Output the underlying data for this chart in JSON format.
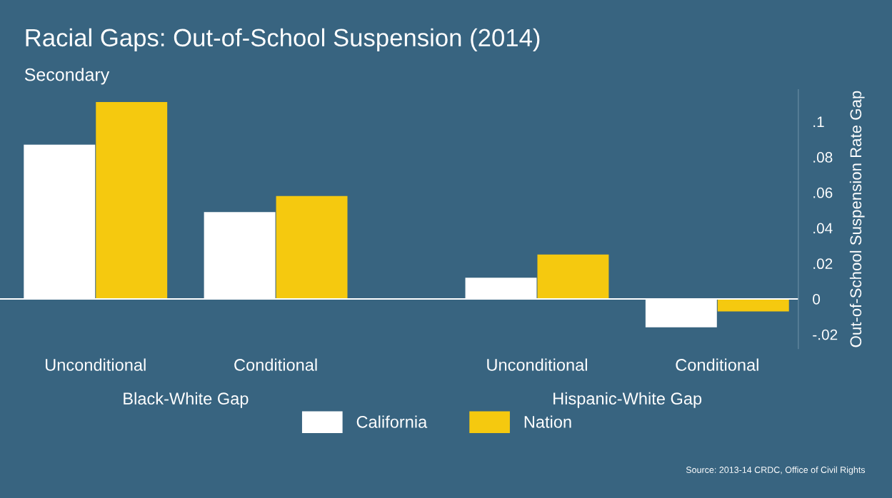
{
  "chart_data": {
    "type": "bar",
    "title": "Racial Gaps: Out-of-School Suspension (2014)",
    "subtitle": "Secondary",
    "ylabel": "Out-of-School Suspension Rate Gap",
    "categories": [
      "Unconditional",
      "Conditional",
      "Unconditional",
      "Conditional"
    ],
    "series": [
      {
        "name": "California",
        "color": "#ffffff",
        "values": [
          0.087,
          0.049,
          0.012,
          -0.016
        ]
      },
      {
        "name": "Nation",
        "color": "#f5c90f",
        "values": [
          0.111,
          0.058,
          0.025,
          -0.007
        ]
      }
    ],
    "ylim": [
      -0.028,
      0.118
    ],
    "yticks": [
      {
        "value": -0.02,
        "label": "-.02"
      },
      0,
      {
        "value": 0.02,
        "label": ".02"
      },
      {
        "value": 0.04,
        "label": ".04"
      },
      {
        "value": 0.06,
        "label": ".06"
      },
      {
        "value": 0.08,
        "label": ".08"
      },
      {
        "value": 0.1,
        "label": ".1"
      }
    ],
    "ref_lines": [
      {
        "axis": "y",
        "value": 0,
        "color": "#ffffff"
      }
    ],
    "annotations": [
      "Black-White Gap",
      "Hispanic-White Gap",
      "Source: 2013-14 CRDC, Office of Civil Rights"
    ],
    "grid": false,
    "legend": "bottom"
  }
}
